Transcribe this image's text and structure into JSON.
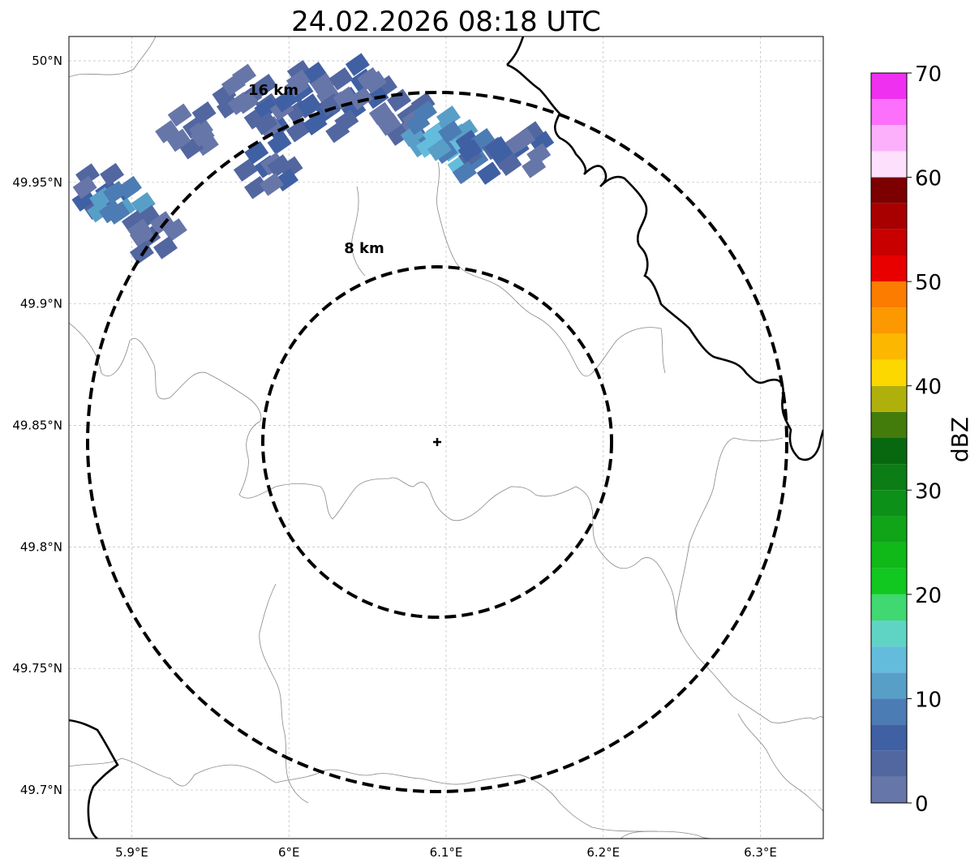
{
  "title": "24.02.2026 08:18 UTC",
  "map": {
    "lon_range": [
      5.86,
      6.34
    ],
    "lat_range": [
      49.68,
      50.01
    ],
    "x_ticks": [
      {
        "value": 5.9,
        "label": "5.9°E"
      },
      {
        "value": 6.0,
        "label": "6°E"
      },
      {
        "value": 6.1,
        "label": "6.1°E"
      },
      {
        "value": 6.2,
        "label": "6.2°E"
      },
      {
        "value": 6.3,
        "label": "6.3°E"
      }
    ],
    "y_ticks": [
      {
        "value": 50.0,
        "label": "50°N"
      },
      {
        "value": 49.95,
        "label": "49.95°N"
      },
      {
        "value": 49.9,
        "label": "49.9°N"
      },
      {
        "value": 49.85,
        "label": "49.85°N"
      },
      {
        "value": 49.8,
        "label": "49.8°N"
      },
      {
        "value": 49.75,
        "label": "49.75°N"
      },
      {
        "value": 49.7,
        "label": "49.7°N"
      }
    ],
    "radar_site": {
      "lon": 6.095,
      "lat": 49.843
    },
    "range_rings": [
      {
        "radius_km": 8,
        "label": "8 km"
      },
      {
        "radius_km": 16,
        "label": "16 km"
      }
    ]
  },
  "colorbar": {
    "label": "dBZ",
    "min": 0,
    "max": 70,
    "step": 2.5,
    "tick_labels": [
      "0",
      "10",
      "20",
      "30",
      "40",
      "50",
      "60",
      "70"
    ],
    "colors": [
      "#6776a8",
      "#5266a0",
      "#4060a4",
      "#4c7cb4",
      "#589fc8",
      "#64bcdc",
      "#60d4c4",
      "#40d870",
      "#10c820",
      "#10b818",
      "#10a418",
      "#0c9018",
      "#0c7c14",
      "#086810",
      "#447c0c",
      "#b0b00c",
      "#fcd800",
      "#fcb800",
      "#fc9800",
      "#fc7c00",
      "#e80000",
      "#c80000",
      "#a80000",
      "#7c0000",
      "#fce0fc",
      "#fcb0fc",
      "#fc70fc",
      "#f030f0"
    ]
  },
  "echoes": [
    {
      "lon": 5.97,
      "lat": 49.985,
      "dbz": 4
    },
    {
      "lon": 5.99,
      "lat": 49.975,
      "dbz": 6
    },
    {
      "lon": 6.01,
      "lat": 49.99,
      "dbz": 5
    },
    {
      "lon": 6.03,
      "lat": 49.98,
      "dbz": 7
    },
    {
      "lon": 6.05,
      "lat": 49.99,
      "dbz": 5
    },
    {
      "lon": 6.075,
      "lat": 49.975,
      "dbz": 4
    },
    {
      "lon": 6.09,
      "lat": 49.97,
      "dbz": 12
    },
    {
      "lon": 6.1,
      "lat": 49.965,
      "dbz": 14
    },
    {
      "lon": 6.12,
      "lat": 49.962,
      "dbz": 8
    },
    {
      "lon": 6.15,
      "lat": 49.965,
      "dbz": 5
    },
    {
      "lon": 5.99,
      "lat": 49.955,
      "dbz": 6
    },
    {
      "lon": 5.94,
      "lat": 49.97,
      "dbz": 3
    },
    {
      "lon": 5.88,
      "lat": 49.945,
      "dbz": 6
    },
    {
      "lon": 5.89,
      "lat": 49.94,
      "dbz": 12
    },
    {
      "lon": 5.91,
      "lat": 49.93,
      "dbz": 4
    }
  ]
}
